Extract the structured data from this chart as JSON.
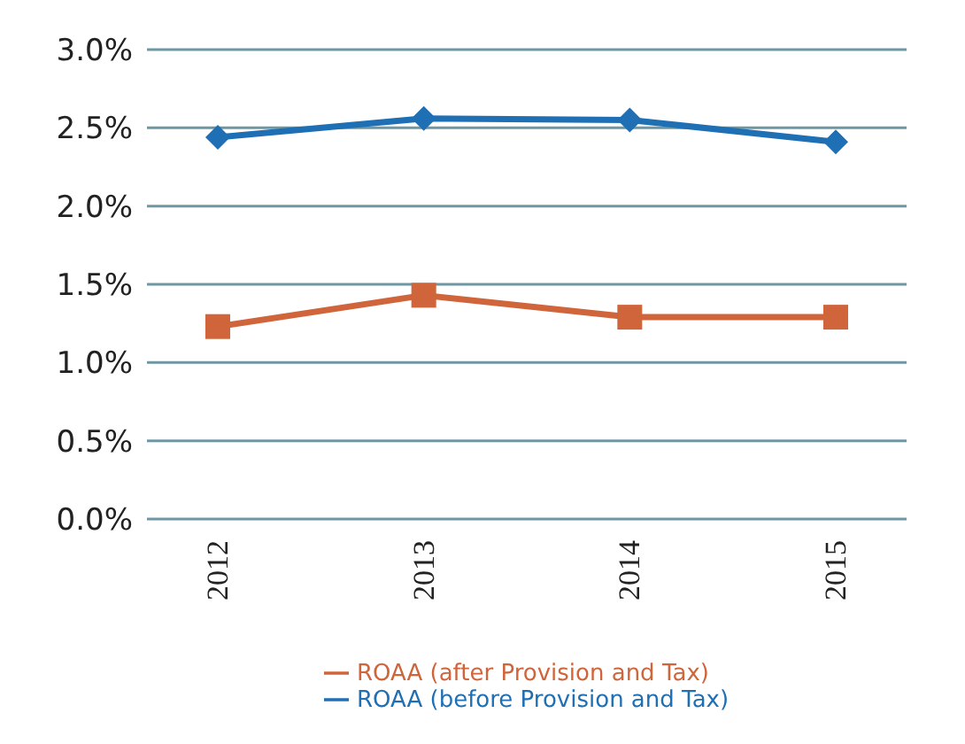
{
  "chart_data": {
    "type": "line",
    "categories": [
      "2012",
      "2013",
      "2014",
      "2015"
    ],
    "series": [
      {
        "name": "ROAA (before Provision and Tax)",
        "color": "#1f6fb4",
        "marker": "diamond",
        "values": [
          2.44,
          2.56,
          2.55,
          2.41
        ]
      },
      {
        "name": "ROAA (after Provision and Tax)",
        "color": "#d0643a",
        "marker": "square",
        "values": [
          1.23,
          1.43,
          1.29,
          1.29
        ]
      }
    ],
    "ylim": [
      0,
      3
    ],
    "yticks": [
      {
        "value": 0,
        "label": "0.0%"
      },
      {
        "value": 0.5,
        "label": "0.5%"
      },
      {
        "value": 1,
        "label": "1.0%"
      },
      {
        "value": 1.5,
        "label": "1.5%"
      },
      {
        "value": 2,
        "label": "2.0%"
      },
      {
        "value": 2.5,
        "label": "2.5%"
      },
      {
        "value": 3,
        "label": "3.0%"
      }
    ],
    "grid": "y",
    "legend": "bottom"
  }
}
